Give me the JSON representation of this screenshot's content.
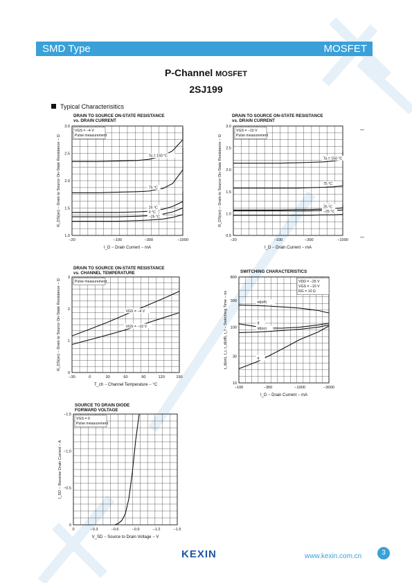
{
  "header": {
    "left": "SMD Type",
    "right": "MOSFET"
  },
  "title": {
    "main": "P-Channel",
    "main_small": "MOSFET",
    "part": "2SJ199"
  },
  "section_label": "Typical  Characterisitics",
  "footer": {
    "logo": "KEXIN",
    "url": "www.kexin.com.cn",
    "page": "3"
  },
  "chart_data": [
    {
      "type": "line",
      "title": "DRAIN TO SOURCE ON-STATE RESISTANCE",
      "subtitle": "vs. DRAIN CURRENT",
      "xlabel": "I_D - Drain Current - mA",
      "ylabel": "R_DS(on) - Drain to Source On-State Resistance - Ω",
      "xscale": "log",
      "xlim": [
        -20,
        -1000
      ],
      "ylim": [
        1.0,
        3.0
      ],
      "xticks": [
        "-20",
        "-100",
        "-300",
        "-1000"
      ],
      "yticks": [
        "1.0",
        "1.5",
        "2.0",
        "2.5",
        "3.0"
      ],
      "annotations": [
        "V_GS = -4 V",
        "Pulse measurement"
      ],
      "series": [
        {
          "name": "T_a = 150 °C",
          "x": [
            -20,
            -50,
            -100,
            -200,
            -300,
            -500,
            -700,
            -1000,
            -1500
          ],
          "y": [
            2.35,
            2.35,
            2.36,
            2.37,
            2.39,
            2.45,
            2.55,
            2.75,
            2.97
          ]
        },
        {
          "name": "75 °C",
          "x": [
            -20,
            -50,
            -100,
            -200,
            -300,
            -500,
            -700,
            -1000,
            -1500
          ],
          "y": [
            1.78,
            1.78,
            1.79,
            1.8,
            1.81,
            1.86,
            1.95,
            2.2,
            2.6
          ]
        },
        {
          "name": "25 °C",
          "x": [
            -20,
            -50,
            -100,
            -200,
            -300,
            -500,
            -700,
            -1000,
            -1500
          ],
          "y": [
            1.42,
            1.42,
            1.42,
            1.43,
            1.44,
            1.48,
            1.53,
            1.62,
            1.8
          ]
        },
        {
          "name": "0 °C",
          "x": [
            -20,
            -50,
            -100,
            -200,
            -300,
            -500,
            -700,
            -1000,
            -1500
          ],
          "y": [
            1.34,
            1.34,
            1.34,
            1.35,
            1.36,
            1.39,
            1.43,
            1.5,
            1.62
          ]
        },
        {
          "name": "-25 °C",
          "x": [
            -20,
            -50,
            -100,
            -200,
            -300,
            -500,
            -700,
            -1000,
            -1500
          ],
          "y": [
            1.26,
            1.26,
            1.26,
            1.27,
            1.28,
            1.3,
            1.33,
            1.38,
            1.48
          ]
        }
      ]
    },
    {
      "type": "line",
      "title": "DRAIN TO SOURCE ON-STATE RESISTANCE",
      "subtitle": "vs. DRAIN CURRENT",
      "xlabel": "I_D - Drain Current - mA",
      "ylabel": "R_DS(on) - Drain to Source On-State Resistance - Ω",
      "xscale": "log",
      "xlim": [
        -20,
        -1000
      ],
      "ylim": [
        0.5,
        3.0
      ],
      "xticks": [
        "-20",
        "-100",
        "-300",
        "-1000"
      ],
      "yticks": [
        "0.5",
        "1.0",
        "1.5",
        "2.0",
        "2.5",
        "3.0"
      ],
      "annotations": [
        "V_GS = -10 V",
        "Pulse measurement"
      ],
      "series": [
        {
          "name": "T_a = 150 °C",
          "x": [
            -20,
            -100,
            -200,
            -300,
            -500,
            -700,
            -1000,
            -1500,
            -2000
          ],
          "y": [
            2.15,
            2.15,
            2.16,
            2.17,
            2.18,
            2.2,
            2.23,
            2.31,
            2.42
          ]
        },
        {
          "name": "75 °C",
          "x": [
            -20,
            -100,
            -200,
            -300,
            -500,
            -700,
            -1000,
            -1500,
            -2000
          ],
          "y": [
            1.58,
            1.58,
            1.58,
            1.59,
            1.6,
            1.61,
            1.63,
            1.68,
            1.75
          ]
        },
        {
          "name": "0 °C",
          "x": [
            -20,
            -100,
            -200,
            -300,
            -500,
            -700,
            -1000,
            -1500,
            -2000
          ],
          "y": [
            1.08,
            1.08,
            1.09,
            1.09,
            1.1,
            1.11,
            1.13,
            1.16,
            1.2
          ]
        },
        {
          "name": "25 °C",
          "x": [
            -20,
            -100,
            -200,
            -300,
            -500,
            -700,
            -1000,
            -1500,
            -2000
          ],
          "y": [
            1.06,
            1.06,
            1.06,
            1.06,
            1.07,
            1.07,
            1.08,
            1.1,
            1.13
          ]
        },
        {
          "name": "-25 °C",
          "x": [
            -20,
            -100,
            -200,
            -300,
            -500,
            -700,
            -1000,
            -1500,
            -2000
          ],
          "y": [
            0.96,
            0.96,
            0.96,
            0.96,
            0.97,
            0.97,
            0.98,
            0.99,
            1.0
          ]
        }
      ]
    },
    {
      "type": "line",
      "title": "DRAIN TO SOURCE ON-STATE RESISTANCE",
      "subtitle": "vs. CHANNEL TEMPERATURE",
      "xlabel": "T_ch - Channel Temperature - °C",
      "ylabel": "R_DS(on) - Drain to Source On-State Resistance - Ω",
      "xlim": [
        -30,
        150
      ],
      "ylim": [
        0,
        3
      ],
      "xticks": [
        "-30",
        "0",
        "30",
        "60",
        "90",
        "120",
        "150"
      ],
      "yticks": [
        "0",
        "1",
        "2",
        "3"
      ],
      "annotations": [
        "Pulse measurement"
      ],
      "series": [
        {
          "name": "V_GS = -4 V",
          "x": [
            -30,
            0,
            30,
            60,
            90,
            120,
            150
          ],
          "y": [
            1.15,
            1.36,
            1.58,
            1.82,
            2.06,
            2.3,
            2.55
          ]
        },
        {
          "name": "V_GS = -10 V",
          "x": [
            -30,
            0,
            30,
            60,
            90,
            120,
            150
          ],
          "y": [
            0.88,
            1.03,
            1.18,
            1.34,
            1.52,
            1.7,
            1.88
          ]
        }
      ]
    },
    {
      "type": "line",
      "title": "SWITCHING CHARACTERISTICS",
      "subtitle": "",
      "xlabel": "I_D - Drain Current - mA",
      "ylabel": "t_d(on), t_r, t_d(off), t_f - Switching Time - ns",
      "xscale": "log",
      "yscale": "log",
      "xlim": [
        -100,
        -3000
      ],
      "ylim": [
        10,
        800
      ],
      "xticks": [
        "-100",
        "-300",
        "-1000",
        "-3000"
      ],
      "yticks": [
        "10",
        "30",
        "100",
        "300",
        "800"
      ],
      "annotations": [
        "V_DD = -25 V",
        "V_GS = -10 V",
        "R_G = 10 Ω"
      ],
      "series": [
        {
          "name": "t_d(off)",
          "x": [
            -100,
            -200,
            -300,
            -500,
            -1000,
            -2000,
            -3000
          ],
          "y": [
            250,
            245,
            240,
            232,
            220,
            200,
            180
          ]
        },
        {
          "name": "t_f",
          "x": [
            -100,
            -200,
            -300,
            -500,
            -1000,
            -2000,
            -3000
          ],
          "y": [
            115,
            102,
            97,
            96,
            100,
            110,
            118
          ]
        },
        {
          "name": "t_d(on)",
          "x": [
            -100,
            -200,
            -300,
            -500,
            -1000,
            -2000,
            -3000
          ],
          "y": [
            80,
            82,
            84,
            87,
            92,
            100,
            110
          ]
        },
        {
          "name": "t_r",
          "x": [
            -100,
            -200,
            -300,
            -500,
            -1000,
            -2000,
            -3000
          ],
          "y": [
            18,
            24,
            30,
            40,
            60,
            82,
            105
          ]
        }
      ]
    },
    {
      "type": "line",
      "title": "SOURCE TO DRAIN DIODE",
      "subtitle": "FORWARD VOLTAGE",
      "xlabel": "V_SD - Source to Drain Voltage - V",
      "ylabel": "I_SD - Reverse Drain Current - A",
      "xlim": [
        0,
        -1.5
      ],
      "ylim": [
        0,
        -1.5
      ],
      "xticks": [
        "0",
        "-0.3",
        "-0.6",
        "-0.9",
        "-1.2",
        "-1.5"
      ],
      "yticks": [
        "0",
        "-0.5",
        "-1.0",
        "-1.5"
      ],
      "annotations": [
        "V_GS = 0",
        "Pulse measurement"
      ],
      "series": [
        {
          "name": "",
          "x": [
            -0.6,
            -0.65,
            -0.7,
            -0.75,
            -0.8,
            -0.85,
            -0.9,
            -0.95
          ],
          "y": [
            0,
            -0.02,
            -0.06,
            -0.15,
            -0.35,
            -0.7,
            -1.15,
            -1.55
          ]
        }
      ]
    }
  ]
}
